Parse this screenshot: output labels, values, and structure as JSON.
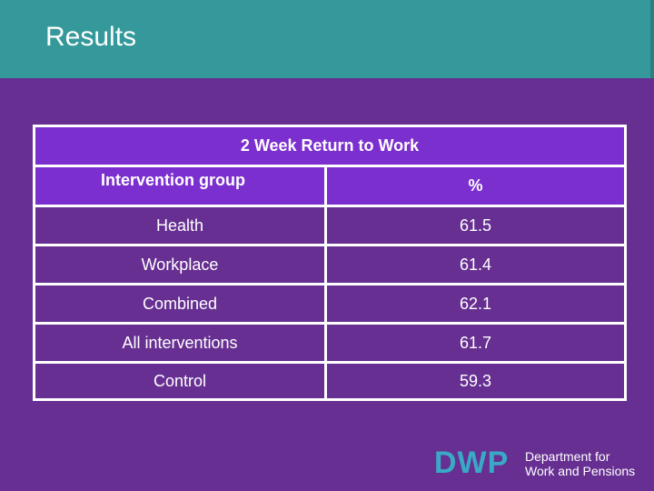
{
  "slide": {
    "title": "Results"
  },
  "table": {
    "caption": "2 Week Return to Work",
    "headers": [
      "Intervention group",
      "%"
    ],
    "rows": [
      {
        "group": "Health",
        "value": "61.5"
      },
      {
        "group": "Workplace",
        "value": "61.4"
      },
      {
        "group": "Combined",
        "value": "62.1"
      },
      {
        "group": "All interventions",
        "value": "61.7"
      },
      {
        "group": "Control",
        "value": "59.3"
      }
    ]
  },
  "logo": {
    "mark": "DWP",
    "line1": "Department for",
    "line2": "Work and Pensions"
  },
  "colors": {
    "background": "#662f91",
    "header": "#35999b",
    "table_header": "#7b2fcf",
    "logo_accent": "#39a9c6"
  }
}
